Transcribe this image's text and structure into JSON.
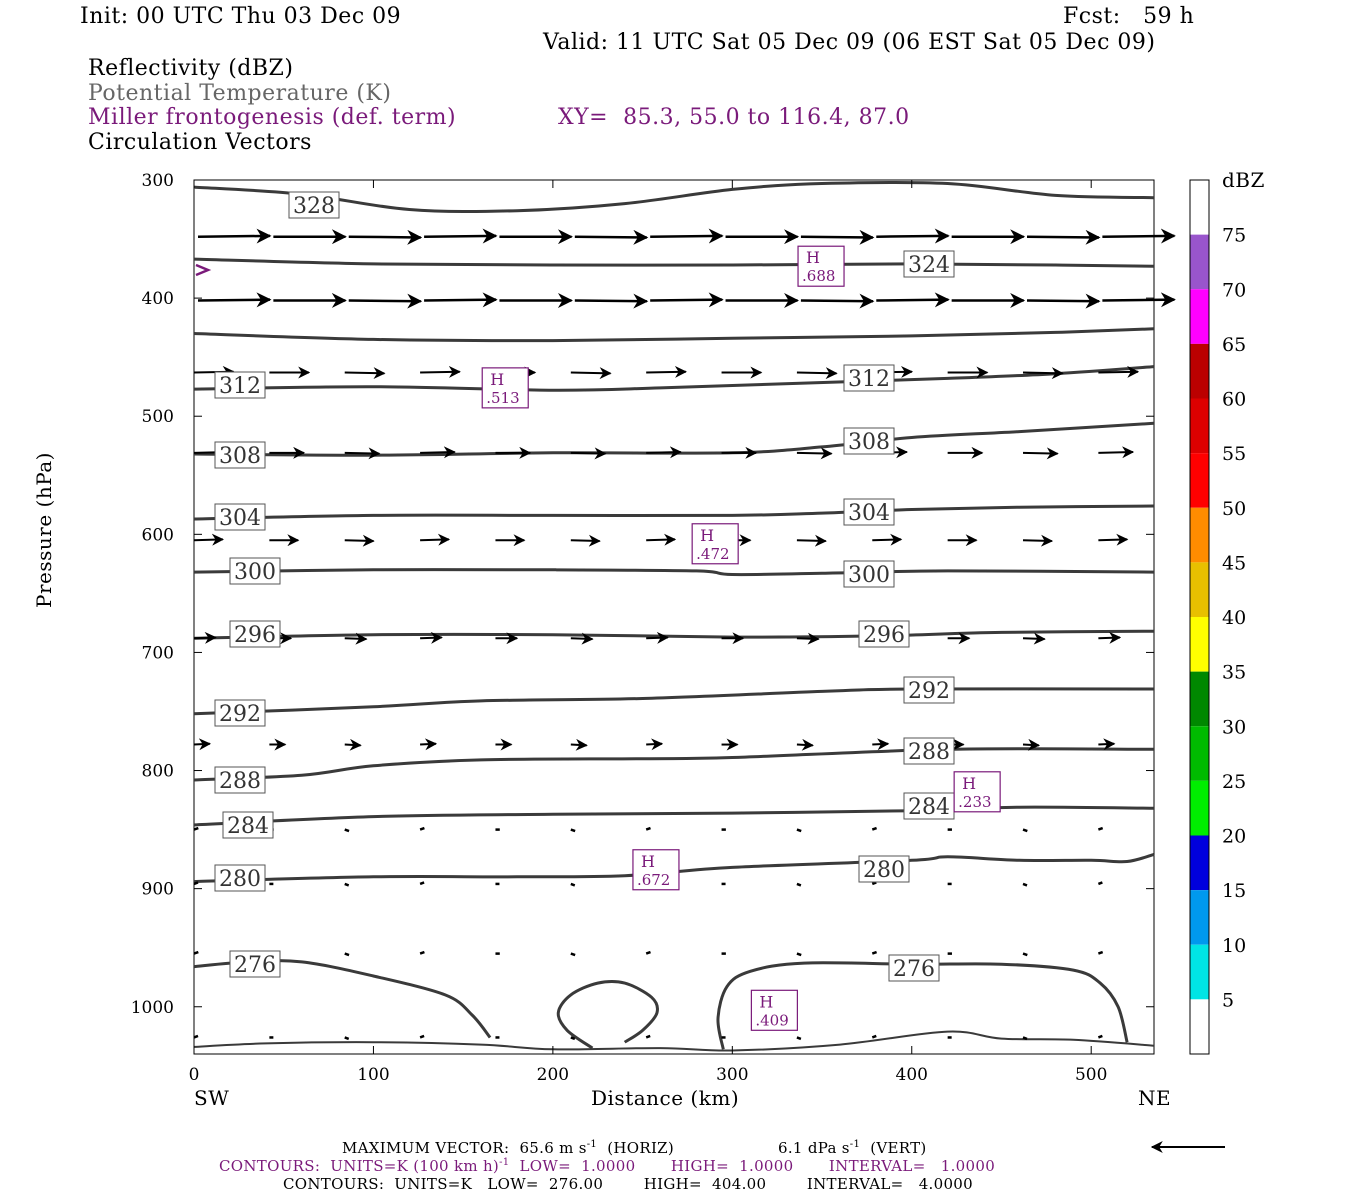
{
  "header": {
    "init": "Init: 00 UTC Thu 03 Dec 09",
    "fcst": "Fcst:   59 h",
    "valid": "Valid: 11 UTC Sat 05 Dec 09 (06 EST Sat 05 Dec 09)",
    "field1": "Reflectivity (dBZ)",
    "field2": "Potential Temperature (K)",
    "field3": "Miller frontogenesis (def. term)",
    "xy": "XY=  85.3, 55.0 to 116.4, 87.0",
    "field4": "Circulation Vectors"
  },
  "colors": {
    "purple": "#7a1a7a",
    "contour": "#3a3a3a"
  },
  "chart_data": {
    "type": "line",
    "xlabel": "Distance (km)",
    "ylabel": "Pressure (hPa)",
    "xlim": [
      0,
      535
    ],
    "ylim": [
      1040,
      300
    ],
    "x_ticks": [
      0,
      100,
      200,
      300,
      400,
      500
    ],
    "y_ticks": [
      300,
      400,
      500,
      600,
      700,
      800,
      900,
      1000
    ],
    "endpoint_left": "SW",
    "endpoint_right": "NE",
    "colorbar": {
      "title": "dBZ",
      "labels": [
        "5",
        "10",
        "15",
        "20",
        "25",
        "30",
        "35",
        "40",
        "45",
        "50",
        "55",
        "60",
        "65",
        "70",
        "75"
      ],
      "colors": [
        "#ffffff",
        "#00e5e5",
        "#0099ee",
        "#0000dd",
        "#00ee00",
        "#00bb00",
        "#008800",
        "#ffff00",
        "#e8c000",
        "#ff8c00",
        "#ff0000",
        "#dd0000",
        "#bb0000",
        "#ff00ff",
        "#9955cc",
        "#ffffff"
      ]
    },
    "theta_contours": [
      {
        "label": "328",
        "points": [
          [
            0,
            306
          ],
          [
            60,
            312
          ],
          [
            120,
            325
          ],
          [
            180,
            326
          ],
          [
            240,
            320
          ],
          [
            300,
            308
          ],
          [
            350,
            303
          ],
          [
            420,
            303
          ],
          [
            480,
            313
          ],
          [
            535,
            315
          ]
        ]
      },
      {
        "label": "324",
        "points": [
          [
            0,
            367
          ],
          [
            100,
            371
          ],
          [
            200,
            372
          ],
          [
            300,
            372
          ],
          [
            400,
            371
          ],
          [
            480,
            372
          ],
          [
            535,
            373
          ]
        ]
      },
      {
        "label": "?",
        "points": [
          [
            0,
            430
          ],
          [
            100,
            435
          ],
          [
            200,
            436
          ],
          [
            300,
            434
          ],
          [
            400,
            432
          ],
          [
            480,
            429
          ],
          [
            535,
            426
          ]
        ]
      },
      {
        "label": "312",
        "points": [
          [
            0,
            477
          ],
          [
            100,
            475
          ],
          [
            200,
            478
          ],
          [
            260,
            476
          ],
          [
            340,
            472
          ],
          [
            420,
            468
          ],
          [
            480,
            464
          ],
          [
            535,
            458
          ]
        ]
      },
      {
        "label": "308",
        "points": [
          [
            0,
            532
          ],
          [
            100,
            533
          ],
          [
            200,
            531
          ],
          [
            300,
            531
          ],
          [
            350,
            526
          ],
          [
            400,
            518
          ],
          [
            460,
            513
          ],
          [
            535,
            506
          ]
        ]
      },
      {
        "label": "304",
        "points": [
          [
            0,
            587
          ],
          [
            100,
            584
          ],
          [
            200,
            584
          ],
          [
            300,
            584
          ],
          [
            350,
            582
          ],
          [
            400,
            579
          ],
          [
            460,
            577
          ],
          [
            535,
            576
          ]
        ]
      },
      {
        "label": "300",
        "points": [
          [
            0,
            632
          ],
          [
            100,
            630
          ],
          [
            200,
            630
          ],
          [
            280,
            631
          ],
          [
            300,
            634
          ],
          [
            350,
            633
          ],
          [
            420,
            631
          ],
          [
            535,
            632
          ]
        ]
      },
      {
        "label": "296",
        "points": [
          [
            0,
            688
          ],
          [
            100,
            685
          ],
          [
            200,
            685
          ],
          [
            300,
            687
          ],
          [
            380,
            686
          ],
          [
            450,
            683
          ],
          [
            535,
            682
          ]
        ]
      },
      {
        "label": "292",
        "points": [
          [
            0,
            752
          ],
          [
            100,
            746
          ],
          [
            160,
            741
          ],
          [
            250,
            739
          ],
          [
            350,
            733
          ],
          [
            400,
            731
          ],
          [
            535,
            731
          ]
        ]
      },
      {
        "label": "288",
        "points": [
          [
            0,
            808
          ],
          [
            60,
            804
          ],
          [
            100,
            796
          ],
          [
            160,
            791
          ],
          [
            250,
            790
          ],
          [
            300,
            789
          ],
          [
            420,
            782
          ],
          [
            535,
            782
          ]
        ]
      },
      {
        "label": "284",
        "points": [
          [
            0,
            846
          ],
          [
            100,
            839
          ],
          [
            200,
            837
          ],
          [
            300,
            836
          ],
          [
            400,
            834
          ],
          [
            460,
            831
          ],
          [
            535,
            832
          ]
        ]
      },
      {
        "label": "280",
        "points": [
          [
            0,
            894
          ],
          [
            100,
            890
          ],
          [
            180,
            890
          ],
          [
            240,
            889
          ],
          [
            300,
            882
          ],
          [
            400,
            876
          ],
          [
            420,
            873
          ],
          [
            460,
            876
          ],
          [
            500,
            876
          ],
          [
            520,
            877
          ],
          [
            535,
            871
          ]
        ]
      },
      {
        "label": "276a",
        "points": [
          [
            0,
            966
          ],
          [
            30,
            962
          ],
          [
            60,
            962
          ],
          [
            100,
            974
          ],
          [
            140,
            990
          ],
          [
            155,
            1007
          ],
          [
            165,
            1026
          ]
        ]
      },
      {
        "label": "276b",
        "points": [
          [
            295,
            1036
          ],
          [
            292,
            1010
          ],
          [
            297,
            983
          ],
          [
            310,
            970
          ],
          [
            340,
            963
          ],
          [
            400,
            964
          ],
          [
            450,
            964
          ],
          [
            490,
            969
          ],
          [
            505,
            980
          ],
          [
            515,
            1000
          ],
          [
            520,
            1030
          ]
        ]
      },
      {
        "label": "bowl",
        "points": [
          [
            222,
            1035
          ],
          [
            208,
            1020
          ],
          [
            203,
            1005
          ],
          [
            210,
            990
          ],
          [
            225,
            980
          ],
          [
            240,
            980
          ],
          [
            255,
            992
          ],
          [
            258,
            1005
          ],
          [
            250,
            1020
          ],
          [
            240,
            1030
          ]
        ]
      },
      {
        "label": "bottom",
        "points": [
          [
            0,
            1034
          ],
          [
            40,
            1031
          ],
          [
            100,
            1030
          ],
          [
            160,
            1032
          ],
          [
            200,
            1036
          ],
          [
            260,
            1035
          ],
          [
            300,
            1037
          ],
          [
            360,
            1032
          ],
          [
            420,
            1021
          ],
          [
            450,
            1027
          ],
          [
            490,
            1028
          ],
          [
            535,
            1033
          ]
        ]
      }
    ],
    "frontogenesis_maxima": [
      {
        "label": "H",
        "value": ".688",
        "x": 350,
        "y": 373
      },
      {
        "label": "H",
        "value": ".513",
        "x": 174,
        "y": 476
      },
      {
        "label": "H",
        "value": ".472",
        "x": 291,
        "y": 608
      },
      {
        "label": "H",
        "value": ".233",
        "x": 437,
        "y": 818
      },
      {
        "label": "H",
        "value": ".672",
        "x": 258,
        "y": 884
      },
      {
        "label": "H",
        "value": ".409",
        "x": 324,
        "y": 1003
      }
    ],
    "vector_rows": [
      {
        "p": 348,
        "u": 1.0,
        "w": 0.0
      },
      {
        "p": 402,
        "u": 1.0,
        "w": 0.0
      },
      {
        "p": 463,
        "u": 0.55,
        "w": 0.0
      },
      {
        "p": 531,
        "u": 0.48,
        "w": 0.0
      },
      {
        "p": 605,
        "u": 0.4,
        "w": 0.0
      },
      {
        "p": 688,
        "u": 0.3,
        "w": 0.0
      },
      {
        "p": 778,
        "u": 0.22,
        "w": 0.0
      },
      {
        "p": 850,
        "u": 0.06,
        "w": 0.0
      },
      {
        "p": 896,
        "u": 0.05,
        "w": 0.0
      },
      {
        "p": 955,
        "u": 0.06,
        "w": 0.0
      },
      {
        "p": 1026,
        "u": 0.04,
        "w": 0.0
      }
    ]
  },
  "footer": {
    "max_vector": "MAXIMUM VECTOR:  65.6 m s",
    "horiz": "(HORIZ)",
    "vert_val": "6.1 dPa s",
    "vert": "(VERT)",
    "sup": "-1",
    "contours1_a": "CONTOURS:  UNITS=K (100 km h)",
    "contours1_b": "LOW=  1.0000       HIGH=  1.0000       INTERVAL=   1.0000",
    "contours2": "CONTOURS:  UNITS=K   LOW=  276.00        HIGH=  404.00        INTERVAL=   4.0000"
  }
}
